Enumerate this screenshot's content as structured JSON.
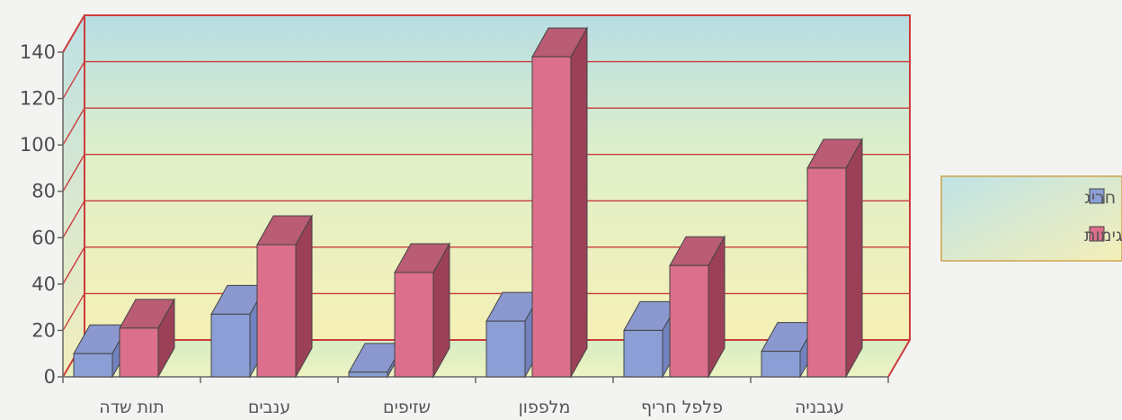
{
  "chart_data": {
    "type": "bar",
    "categories": [
      "תות שדה",
      "ענבים",
      "שזיפים",
      "מלפפון",
      "פלפל חריף",
      "עגבניה"
    ],
    "series": [
      {
        "name": "חריג",
        "values": [
          10,
          27,
          2,
          24,
          20,
          11
        ]
      },
      {
        "name": "סה\"כ דגימות",
        "values": [
          21,
          57,
          45,
          138,
          48,
          90
        ]
      }
    ],
    "ylim": [
      0,
      140
    ],
    "yticks": [
      0,
      20,
      40,
      60,
      80,
      100,
      120,
      140
    ],
    "grid": true,
    "legend_position": "right",
    "colors": {
      "series_front": [
        "#8b9fd6",
        "#dc6f8c"
      ],
      "series_top": [
        "#8a98cf",
        "#b95c74"
      ],
      "series_side": [
        "#7282be",
        "#9c4058"
      ],
      "frame": "#cc3b3b",
      "edge": "#444444"
    }
  }
}
